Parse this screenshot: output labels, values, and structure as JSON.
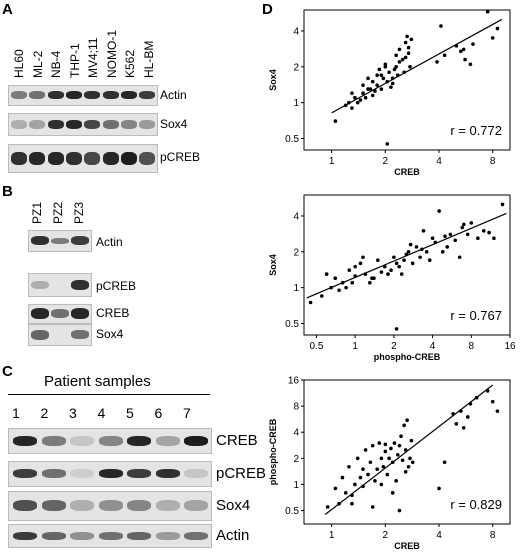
{
  "panels": {
    "a": {
      "letter": "A",
      "lanes": [
        "HL60",
        "ML-2",
        "NB-4",
        "THP-1",
        "MV4;11",
        "NOMO-1",
        "K562",
        "HL-BM"
      ],
      "bands": [
        "Actin",
        "Sox4",
        "pCREB"
      ]
    },
    "b": {
      "letter": "B",
      "lanes": [
        "PZ1",
        "PZ2",
        "PZ3"
      ],
      "bands": [
        "Actin",
        "pCREB",
        "CREB",
        "Sox4"
      ]
    },
    "c": {
      "letter": "C",
      "title": "Patient samples",
      "lanes": [
        "1",
        "2",
        "3",
        "4",
        "5",
        "6",
        "7"
      ],
      "bands": [
        "CREB",
        "pCREB",
        "Sox4",
        "Actin"
      ]
    },
    "d": {
      "letter": "D"
    }
  },
  "chart_data": [
    {
      "type": "scatter",
      "ylabel": "Sox4",
      "xlabel": "CREB",
      "annotation": "r = 0.772",
      "xscale": "log2",
      "yscale": "log2",
      "x_ticks": [
        "1",
        "2",
        "4",
        "8"
      ],
      "y_ticks": [
        "0.5",
        "1",
        "2",
        "4"
      ],
      "xlim": [
        0.7,
        10
      ],
      "ylim": [
        0.4,
        6
      ],
      "x": [
        1.05,
        1.2,
        1.25,
        1.3,
        1.35,
        1.4,
        1.45,
        1.5,
        1.5,
        1.55,
        1.6,
        1.65,
        1.7,
        1.75,
        1.8,
        1.85,
        1.9,
        1.95,
        2.0,
        2.05,
        2.1,
        2.15,
        2.2,
        2.25,
        2.3,
        2.35,
        2.4,
        2.5,
        2.55,
        2.6,
        2.65,
        2.7,
        2.75,
        2.8,
        1.7,
        1.9,
        2.0,
        2.2,
        2.4,
        3.9,
        4.1,
        4.3,
        5.0,
        5.3,
        5.6,
        6.0,
        7.5,
        8.0,
        8.5,
        2.05,
        2.6,
        1.3,
        1.6,
        1.8,
        2.3,
        2.7,
        5.5,
        6.2
      ],
      "y": [
        0.7,
        0.95,
        1.0,
        0.9,
        1.1,
        1.0,
        1.05,
        1.2,
        1.4,
        1.1,
        1.6,
        1.3,
        1.5,
        1.25,
        1.4,
        1.9,
        1.7,
        1.6,
        2.0,
        1.5,
        1.8,
        1.35,
        1.6,
        1.9,
        2.5,
        1.7,
        2.2,
        2.3,
        1.8,
        3.2,
        3.6,
        2.6,
        2.0,
        3.4,
        1.15,
        1.3,
        2.1,
        1.45,
        2.8,
        2.2,
        4.4,
        2.5,
        3.0,
        2.7,
        2.3,
        2.1,
        5.8,
        3.5,
        4.2,
        0.45,
        2.4,
        1.2,
        1.3,
        1.7,
        2.0,
        2.9,
        2.8,
        3.1
      ],
      "fit": {
        "from": [
          1,
          0.82
        ],
        "to": [
          9,
          5.0
        ]
      }
    },
    {
      "type": "scatter",
      "ylabel": "Sox4",
      "xlabel": "phospho-CREB",
      "annotation": "r = 0.767",
      "xscale": "log2",
      "yscale": "log2",
      "x_ticks": [
        "0.5",
        "1",
        "2",
        "4",
        "8",
        "16"
      ],
      "y_ticks": [
        "0.5",
        "1",
        "2",
        "4"
      ],
      "xlim": [
        0.4,
        16
      ],
      "ylim": [
        0.4,
        6
      ],
      "x": [
        0.45,
        0.55,
        0.6,
        0.65,
        0.7,
        0.75,
        0.8,
        0.85,
        0.9,
        1.0,
        1.0,
        1.1,
        1.2,
        1.3,
        1.4,
        1.5,
        1.6,
        1.7,
        1.8,
        1.9,
        2.0,
        2.1,
        2.2,
        2.3,
        2.4,
        2.5,
        2.6,
        2.8,
        3.0,
        3.2,
        3.4,
        3.6,
        3.8,
        4.0,
        4.2,
        4.5,
        4.8,
        5.0,
        5.5,
        6.0,
        6.5,
        7.0,
        7.5,
        8.0,
        9.0,
        10.0,
        11.0,
        12.0,
        14.0,
        2.1,
        0.95,
        1.15,
        1.35,
        2.7,
        3.3,
        5.2,
        6.8
      ],
      "y": [
        0.75,
        0.85,
        1.3,
        1.0,
        1.2,
        0.95,
        1.1,
        1.0,
        1.4,
        1.5,
        1.25,
        1.6,
        1.3,
        1.1,
        1.2,
        1.7,
        1.35,
        1.5,
        1.3,
        1.4,
        1.8,
        1.6,
        1.5,
        1.3,
        1.7,
        1.9,
        2.0,
        1.6,
        2.2,
        1.8,
        3.0,
        2.0,
        1.7,
        2.6,
        2.4,
        4.4,
        2.0,
        2.7,
        2.8,
        2.5,
        1.8,
        3.4,
        2.8,
        3.5,
        2.6,
        3.0,
        2.9,
        2.6,
        5.0,
        0.45,
        1.1,
        1.8,
        1.2,
        2.3,
        2.1,
        2.2,
        3.2
      ],
      "fit": {
        "from": [
          0.42,
          0.82
        ],
        "to": [
          15,
          4.2
        ]
      }
    },
    {
      "type": "scatter",
      "ylabel": "phospho-CREB",
      "xlabel": "CREB",
      "annotation": "r = 0.829",
      "xscale": "log2",
      "yscale": "log2",
      "x_ticks": [
        "1",
        "2",
        "4",
        "8"
      ],
      "y_ticks": [
        "0.5",
        "1",
        "2",
        "4",
        "8",
        "16"
      ],
      "xlim": [
        0.7,
        10
      ],
      "ylim": [
        0.35,
        16
      ],
      "x": [
        0.95,
        1.05,
        1.1,
        1.15,
        1.2,
        1.25,
        1.3,
        1.35,
        1.4,
        1.45,
        1.5,
        1.5,
        1.55,
        1.6,
        1.65,
        1.7,
        1.75,
        1.8,
        1.85,
        1.9,
        1.95,
        2.0,
        2.0,
        2.05,
        2.1,
        2.15,
        2.2,
        2.25,
        2.3,
        2.35,
        2.4,
        2.45,
        2.5,
        2.55,
        2.6,
        2.65,
        2.7,
        2.75,
        2.8,
        2.85,
        4.0,
        4.3,
        4.8,
        5.0,
        5.3,
        5.5,
        5.8,
        6.0,
        6.5,
        7.5,
        8.0,
        8.5,
        1.3,
        1.7,
        2.2,
        2.6,
        1.9,
        2.4
      ],
      "y": [
        0.55,
        0.9,
        0.6,
        1.2,
        0.8,
        1.6,
        0.75,
        1.0,
        2.0,
        1.2,
        1.5,
        0.95,
        2.5,
        1.3,
        1.8,
        2.8,
        1.1,
        1.5,
        3.0,
        2.0,
        1.6,
        2.4,
        2.9,
        1.3,
        2.0,
        2.6,
        1.8,
        3.0,
        1.1,
        2.2,
        2.8,
        3.6,
        1.9,
        4.8,
        2.5,
        5.5,
        1.6,
        2.0,
        3.2,
        1.8,
        0.9,
        1.8,
        6.5,
        5.0,
        7.0,
        4.5,
        6.0,
        8.5,
        10.0,
        12.0,
        9.0,
        7.0,
        0.6,
        0.55,
        0.8,
        1.4,
        1.0,
        0.5
      ],
      "fit": {
        "from": [
          0.92,
          0.45
        ],
        "to": [
          8,
          14
        ]
      }
    }
  ]
}
